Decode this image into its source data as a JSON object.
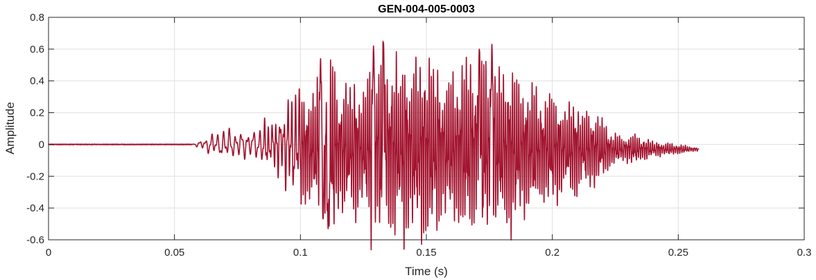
{
  "chart_data": {
    "type": "line",
    "title": "GEN-004-005-0003",
    "xlabel": "Time (s)",
    "ylabel": "Amplitude",
    "xlim": [
      0,
      0.3
    ],
    "ylim": [
      -0.6,
      0.8
    ],
    "xticks": [
      0,
      0.05,
      0.1,
      0.15,
      0.2,
      0.25,
      0.3
    ],
    "xtick_labels": [
      "0",
      "0.05",
      "0.1",
      "0.15",
      "0.2",
      "0.25",
      "0.3"
    ],
    "yticks": [
      -0.6,
      -0.4,
      -0.2,
      0,
      0.2,
      0.4,
      0.6,
      0.8
    ],
    "ytick_labels": [
      "-0.6",
      "-0.4",
      "-0.2",
      "0",
      "0.2",
      "0.4",
      "0.6",
      "0.8"
    ],
    "grid": true,
    "line_color": "#a2142f",
    "signal": {
      "duration": 0.258,
      "onset": 0.057,
      "envelope": [
        [
          0.0,
          0.0
        ],
        [
          0.057,
          0.0
        ],
        [
          0.062,
          0.05
        ],
        [
          0.068,
          0.1
        ],
        [
          0.08,
          0.1
        ],
        [
          0.09,
          0.18
        ],
        [
          0.1,
          0.35
        ],
        [
          0.11,
          0.5
        ],
        [
          0.12,
          0.45
        ],
        [
          0.13,
          0.6
        ],
        [
          0.15,
          0.55
        ],
        [
          0.165,
          0.55
        ],
        [
          0.176,
          0.6
        ],
        [
          0.19,
          0.4
        ],
        [
          0.21,
          0.3
        ],
        [
          0.225,
          0.12
        ],
        [
          0.24,
          0.05
        ],
        [
          0.258,
          0.01
        ]
      ],
      "peaks": [
        {
          "t": 0.111,
          "v": -0.53
        },
        {
          "t": 0.109,
          "v": -0.47
        },
        {
          "t": 0.108,
          "v": 0.54
        },
        {
          "t": 0.129,
          "v": 0.62
        },
        {
          "t": 0.133,
          "v": 0.64
        },
        {
          "t": 0.176,
          "v": 0.63
        },
        {
          "t": 0.171,
          "v": 0.6
        }
      ]
    }
  }
}
